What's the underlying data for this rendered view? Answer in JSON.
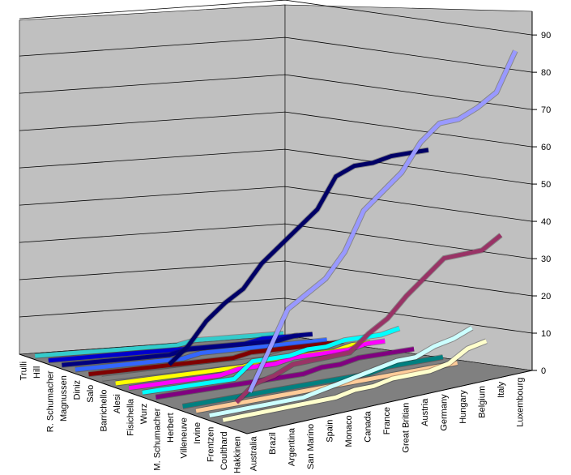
{
  "chart_data": {
    "type": "line",
    "style": "3d-ribbon",
    "title": "",
    "xlabel": "",
    "ylabel": "",
    "ylim": [
      0,
      90
    ],
    "y_ticks": [
      0,
      10,
      20,
      30,
      40,
      50,
      60,
      70,
      80,
      90
    ],
    "grid": true,
    "legend": "none",
    "categories": [
      "Australia",
      "Brazil",
      "Argentina",
      "San Marino",
      "Spain",
      "Monaco",
      "Canada",
      "France",
      "Great Britian",
      "Austria",
      "Germany",
      "Hungary",
      "Belgium",
      "Italy",
      "Luxembourg"
    ],
    "series": [
      {
        "name": "Trulli",
        "color": "#33CCCC",
        "values": [
          0,
          0,
          0,
          0,
          0,
          0,
          0,
          0,
          0,
          1,
          1,
          1,
          1,
          1,
          1
        ]
      },
      {
        "name": "Hill",
        "color": "#0000CC",
        "values": [
          0,
          0,
          0,
          0,
          0,
          0,
          0,
          0,
          0,
          0,
          0,
          0,
          1,
          1,
          1
        ]
      },
      {
        "name": "R. Schumacher",
        "color": "#000080",
        "values": [
          0,
          0,
          0,
          0,
          0,
          0,
          0,
          1,
          1,
          1,
          1,
          1,
          1,
          2,
          2
        ]
      },
      {
        "name": "Magnussen",
        "color": "#3366FF",
        "values": [
          0,
          0,
          0,
          0,
          0,
          0,
          0,
          1,
          1,
          1,
          1,
          1,
          1,
          1,
          1
        ]
      },
      {
        "name": "Diniz",
        "color": "#800000",
        "values": [
          0,
          0,
          0,
          0,
          0,
          0,
          0,
          0,
          0,
          1,
          1,
          1,
          1,
          1,
          1
        ]
      },
      {
        "name": "Salo",
        "color": "#808080",
        "values": [
          0,
          0,
          0,
          0,
          0,
          0,
          0,
          0,
          0,
          0,
          1,
          1,
          1,
          1,
          1
        ]
      },
      {
        "name": "Barrichello",
        "color": "#FFFF00",
        "values": [
          0,
          0,
          0,
          0,
          0,
          0,
          0,
          0,
          1,
          1,
          1,
          1,
          1,
          2,
          2
        ]
      },
      {
        "name": "Alesi",
        "color": "#FF00FF",
        "values": [
          0,
          0,
          0,
          0,
          0,
          0,
          1,
          1,
          1,
          2,
          2,
          2,
          2,
          3,
          3
        ]
      },
      {
        "name": "Fisichella",
        "color": "#00FFFF",
        "values": [
          0,
          0,
          0,
          0,
          0,
          0,
          4,
          4,
          4,
          5,
          5,
          6,
          6,
          6,
          7
        ]
      },
      {
        "name": "Wurz",
        "color": "#800080",
        "values": [
          0,
          0,
          0,
          0,
          0,
          0,
          0,
          0,
          0,
          1,
          1,
          2,
          2,
          2,
          2
        ]
      },
      {
        "name": "M. Schumacher",
        "color": "#000066",
        "values": [
          10,
          14,
          20,
          24,
          27,
          33,
          37,
          41,
          45,
          53,
          55,
          55,
          56,
          56,
          56
        ]
      },
      {
        "name": "Herbert",
        "color": "#008080",
        "values": [
          0,
          0,
          0,
          0,
          0,
          0,
          0,
          0,
          0,
          0,
          0,
          1,
          1,
          1,
          1
        ]
      },
      {
        "name": "Villeneuve",
        "color": "#FFCC99",
        "values": [
          0,
          0,
          0,
          0,
          0,
          0,
          0,
          0,
          0,
          0,
          0,
          0,
          0,
          0,
          0
        ]
      },
      {
        "name": "Irvine",
        "color": "#CCFFFF",
        "values": [
          0,
          0,
          0,
          0,
          0,
          0,
          1,
          2,
          3,
          4,
          5,
          5,
          7,
          8,
          10
        ]
      },
      {
        "name": "Frentzen",
        "color": "#FFFFCC",
        "values": [
          0,
          0,
          0,
          0,
          0,
          0,
          0,
          1,
          1,
          2,
          2,
          2,
          3,
          6,
          7
        ]
      },
      {
        "name": "Coulthard",
        "color": "#993366",
        "values": [
          6,
          10,
          11,
          13,
          13,
          13,
          13,
          17,
          20,
          25,
          29,
          33,
          33,
          33,
          36
        ]
      },
      {
        "name": "Hakkinen",
        "color": "#9999FF",
        "values": [
          10,
          20,
          30,
          33,
          36,
          42,
          52,
          56,
          60,
          67,
          71,
          71,
          73,
          76,
          86
        ]
      }
    ]
  }
}
